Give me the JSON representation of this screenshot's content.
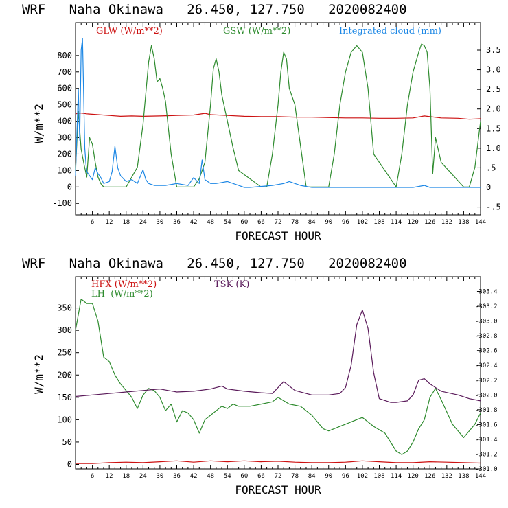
{
  "chart_data": [
    {
      "type": "line",
      "title": "WRF   Naha Okinawa   26.450, 127.750   2020082400",
      "xlabel": "FORECAST HOUR",
      "ylabel": "W/m**2",
      "xlim": [
        0,
        144
      ],
      "ylim": [
        -170,
        1000
      ],
      "y2lim": [
        -0.7,
        4.2
      ],
      "xticks": [
        6,
        12,
        18,
        24,
        30,
        36,
        42,
        48,
        54,
        60,
        66,
        72,
        78,
        84,
        90,
        96,
        102,
        108,
        114,
        120,
        126,
        132,
        138,
        144
      ],
      "yticks": [
        -100,
        0,
        100,
        200,
        300,
        400,
        500,
        600,
        700,
        800
      ],
      "y2ticks": [
        "-.5",
        "0",
        ".5",
        "1.0",
        "1.5",
        "2.0",
        "2.5",
        "3.0",
        "3.5"
      ],
      "y2tick_values": [
        -0.5,
        0,
        0.5,
        1.0,
        1.5,
        2.0,
        2.5,
        3.0,
        3.5
      ],
      "series": [
        {
          "name": "GLW (W/m**2)",
          "axis": "left",
          "color": "#cc1010",
          "x": [
            0,
            2,
            4,
            8,
            12,
            16,
            20,
            24,
            30,
            36,
            42,
            46,
            48,
            54,
            60,
            66,
            72,
            78,
            84,
            90,
            96,
            102,
            108,
            114,
            120,
            124,
            126,
            130,
            136,
            140,
            144
          ],
          "y": [
            445,
            450,
            445,
            440,
            435,
            430,
            432,
            430,
            432,
            435,
            438,
            448,
            440,
            435,
            430,
            428,
            428,
            425,
            425,
            422,
            420,
            420,
            418,
            418,
            420,
            432,
            428,
            420,
            418,
            412,
            415
          ]
        },
        {
          "name": "GSW (W/m**2)",
          "axis": "left",
          "color": "#2e8b2e",
          "x": [
            0,
            1,
            2,
            3,
            4,
            5,
            6,
            7,
            8,
            9,
            10,
            18,
            20,
            22,
            24,
            26,
            27,
            28,
            29,
            30,
            31,
            32,
            34,
            36,
            42,
            44,
            46,
            48,
            49,
            50,
            51,
            52,
            54,
            56,
            58,
            66,
            68,
            70,
            72,
            73,
            74,
            75,
            76,
            78,
            80,
            82,
            90,
            92,
            94,
            96,
            98,
            100,
            102,
            104,
            106,
            114,
            116,
            118,
            120,
            122,
            123,
            124,
            125,
            126,
            127,
            128,
            130,
            138,
            140,
            142,
            144
          ],
          "y": [
            100,
            460,
            230,
            140,
            60,
            300,
            260,
            150,
            60,
            20,
            0,
            0,
            60,
            120,
            380,
            760,
            860,
            780,
            640,
            660,
            600,
            520,
            200,
            0,
            0,
            50,
            150,
            500,
            720,
            780,
            700,
            560,
            400,
            240,
            100,
            0,
            0,
            200,
            500,
            700,
            820,
            780,
            600,
            500,
            250,
            0,
            0,
            200,
            500,
            700,
            820,
            860,
            820,
            600,
            200,
            0,
            200,
            500,
            700,
            820,
            870,
            860,
            820,
            600,
            80,
            300,
            150,
            0,
            0,
            120,
            400
          ]
        },
        {
          "name": "Integrated cloud (mm)",
          "axis": "right",
          "color": "#1e88e5",
          "x": [
            0,
            1,
            1.5,
            2,
            2.5,
            3,
            3.3,
            3.7,
            4,
            5,
            6,
            7,
            8,
            9,
            10,
            12,
            13,
            14,
            15,
            16,
            18,
            20,
            22,
            24,
            25,
            26,
            28,
            30,
            32,
            36,
            40,
            42,
            44,
            45,
            46,
            48,
            50,
            54,
            58,
            60,
            62,
            70,
            74,
            76,
            78,
            80,
            84,
            100,
            110,
            120,
            124,
            126,
            130,
            144
          ],
          "y": [
            0.3,
            2.5,
            1.2,
            3.5,
            3.8,
            2.0,
            1.0,
            0.6,
            0.4,
            0.3,
            0.2,
            0.5,
            0.35,
            0.25,
            0.1,
            0.15,
            0.4,
            1.05,
            0.5,
            0.3,
            0.15,
            0.2,
            0.1,
            0.45,
            0.2,
            0.1,
            0.05,
            0.05,
            0.05,
            0.1,
            0.05,
            0.25,
            0.1,
            0.7,
            0.2,
            0.1,
            0.1,
            0.15,
            0.05,
            0.0,
            0.0,
            0.05,
            0.1,
            0.15,
            0.1,
            0.05,
            0.0,
            0.0,
            0.0,
            0.0,
            0.05,
            0.0,
            0.0,
            0.0
          ]
        }
      ]
    },
    {
      "type": "line",
      "title": "WRF   Naha Okinawa   26.450, 127.750   2020082400",
      "xlabel": "FORECAST HOUR",
      "ylabel": "W/m**2",
      "xlim": [
        0,
        144
      ],
      "ylim": [
        -10,
        420
      ],
      "y2lim": [
        301.0,
        303.6
      ],
      "xticks": [
        6,
        12,
        18,
        24,
        30,
        36,
        42,
        48,
        54,
        60,
        66,
        72,
        78,
        84,
        90,
        96,
        102,
        108,
        114,
        120,
        126,
        132,
        138,
        144
      ],
      "yticks": [
        0,
        50,
        100,
        150,
        200,
        250,
        300,
        350
      ],
      "y2ticks": [
        "301.0",
        "301.2",
        "301.4",
        "301.6",
        "301.8",
        "302.0",
        "302.2",
        "302.4",
        "302.6",
        "302.8",
        "303.0",
        "303.2",
        "303.4"
      ],
      "y2tick_values": [
        301.0,
        301.2,
        301.4,
        301.6,
        301.8,
        302.0,
        302.2,
        302.4,
        302.6,
        302.8,
        303.0,
        303.2,
        303.4
      ],
      "series": [
        {
          "name": "HFX (W/m**2)",
          "axis": "left",
          "color": "#cc1010",
          "x": [
            0,
            6,
            12,
            18,
            24,
            30,
            36,
            42,
            48,
            54,
            60,
            66,
            72,
            78,
            84,
            90,
            96,
            102,
            108,
            114,
            120,
            126,
            132,
            138,
            144
          ],
          "y": [
            2,
            2,
            4,
            5,
            4,
            6,
            8,
            5,
            8,
            6,
            8,
            6,
            7,
            5,
            4,
            4,
            5,
            8,
            6,
            4,
            4,
            6,
            5,
            4,
            3
          ]
        },
        {
          "name": "LH  (W/m**2)",
          "axis": "left",
          "color": "#2e8b2e",
          "x": [
            0,
            2,
            4,
            6,
            8,
            10,
            12,
            14,
            16,
            18,
            20,
            22,
            24,
            26,
            28,
            30,
            32,
            34,
            36,
            38,
            40,
            42,
            44,
            46,
            48,
            50,
            52,
            54,
            56,
            58,
            62,
            66,
            70,
            72,
            76,
            80,
            84,
            88,
            90,
            94,
            98,
            102,
            106,
            110,
            112,
            114,
            116,
            118,
            120,
            122,
            124,
            126,
            128,
            130,
            134,
            138,
            142,
            144
          ],
          "y": [
            300,
            370,
            360,
            360,
            320,
            240,
            230,
            200,
            180,
            165,
            150,
            125,
            155,
            170,
            165,
            150,
            120,
            135,
            95,
            120,
            115,
            100,
            70,
            100,
            110,
            120,
            130,
            125,
            135,
            130,
            130,
            135,
            140,
            150,
            135,
            130,
            110,
            80,
            75,
            85,
            95,
            105,
            85,
            70,
            50,
            30,
            22,
            30,
            50,
            80,
            100,
            150,
            170,
            145,
            90,
            60,
            90,
            115
          ]
        },
        {
          "name": "TSK (K)",
          "axis": "right",
          "color": "#5a1a5a",
          "x": [
            0,
            6,
            12,
            18,
            24,
            30,
            36,
            42,
            48,
            52,
            54,
            60,
            66,
            70,
            74,
            78,
            84,
            90,
            94,
            96,
            98,
            100,
            102,
            104,
            106,
            108,
            112,
            114,
            118,
            120,
            122,
            124,
            126,
            130,
            136,
            140,
            144
          ],
          "y": [
            301.98,
            302.0,
            302.02,
            302.04,
            302.06,
            302.08,
            302.04,
            302.05,
            302.08,
            302.12,
            302.08,
            302.05,
            302.03,
            302.02,
            302.18,
            302.06,
            302.0,
            302.0,
            302.02,
            302.1,
            302.4,
            302.95,
            303.15,
            302.9,
            302.3,
            301.95,
            301.9,
            301.9,
            301.92,
            302.0,
            302.2,
            302.22,
            302.15,
            302.05,
            302.0,
            301.95,
            301.92
          ]
        }
      ]
    }
  ]
}
